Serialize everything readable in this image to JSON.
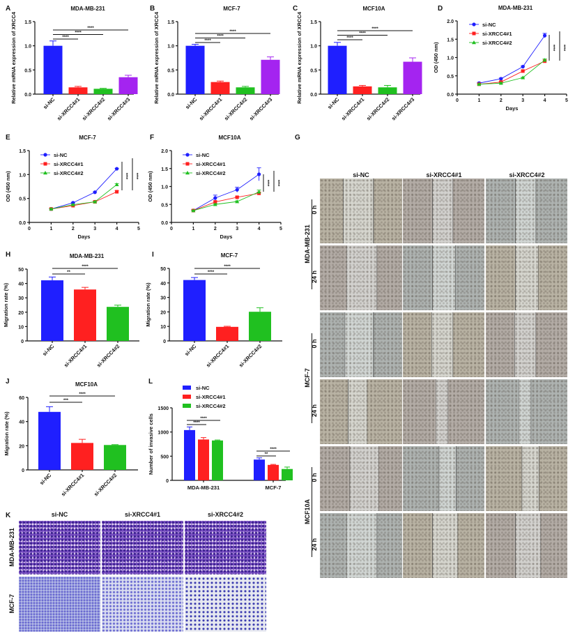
{
  "panel_letters": {
    "A": "A",
    "B": "B",
    "C": "C",
    "D": "D",
    "E": "E",
    "F": "F",
    "G": "G",
    "H": "H",
    "I": "I",
    "J": "J",
    "K": "K",
    "L": "L"
  },
  "colors": {
    "si-NC": "#1f1fff",
    "si-XRCC4#1": "#ff2020",
    "si-XRCC4#2": "#20c020",
    "si-XRCC4#3": "#a424f0"
  },
  "chart_data": [
    {
      "panel": "A",
      "type": "bar",
      "title": "MDA-MB-231",
      "ylabel": "Relative mRNA expression of XRCC4",
      "ylim": [
        0,
        1.5
      ],
      "yticks": [
        "0.0",
        "0.5",
        "1.0",
        "1.5"
      ],
      "categories": [
        "si-NC",
        "si-XRCC4#1",
        "si-XRCC4#2",
        "si-XRCC4#3"
      ],
      "values": [
        1.0,
        0.14,
        0.11,
        0.35
      ],
      "errors": [
        0.1,
        0.02,
        0.01,
        0.04
      ],
      "significance": [
        {
          "from": 0,
          "to": 1,
          "label": "****"
        },
        {
          "from": 0,
          "to": 2,
          "label": "****"
        },
        {
          "from": 0,
          "to": 3,
          "label": "****"
        }
      ]
    },
    {
      "panel": "B",
      "type": "bar",
      "title": "MCF-7",
      "ylabel": "Relative mRNA expression of XRCC4",
      "ylim": [
        0,
        1.5
      ],
      "yticks": [
        "0.0",
        "0.5",
        "1.0",
        "1.5"
      ],
      "categories": [
        "si-NC",
        "si-XRCC4#1",
        "si-XRCC4#2",
        "si-XRCC4#3"
      ],
      "values": [
        1.0,
        0.25,
        0.14,
        0.71
      ],
      "errors": [
        0.03,
        0.02,
        0.02,
        0.06
      ],
      "significance": [
        {
          "from": 0,
          "to": 1,
          "label": "****"
        },
        {
          "from": 0,
          "to": 2,
          "label": "****"
        },
        {
          "from": 0,
          "to": 3,
          "label": "****"
        }
      ]
    },
    {
      "panel": "C",
      "type": "bar",
      "title": "MCF10A",
      "ylabel": "Relative mRNA expression of XRCC4",
      "ylim": [
        0,
        1.5
      ],
      "yticks": [
        "0.0",
        "0.5",
        "1.0",
        "1.5"
      ],
      "categories": [
        "si-NC",
        "si-XRCC4#1",
        "si-XRCC4#2",
        "si-XRCC4#3"
      ],
      "values": [
        1.0,
        0.16,
        0.14,
        0.67
      ],
      "errors": [
        0.07,
        0.02,
        0.04,
        0.08
      ],
      "significance": [
        {
          "from": 0,
          "to": 1,
          "label": "****"
        },
        {
          "from": 0,
          "to": 2,
          "label": "****"
        },
        {
          "from": 0,
          "to": 3,
          "label": "****"
        }
      ]
    },
    {
      "panel": "D",
      "type": "line",
      "title": "MDA-MB-231",
      "xlabel": "Days",
      "ylabel": "OD (450 nm)",
      "xlim": [
        0,
        5
      ],
      "ylim": [
        0,
        2
      ],
      "xticks": [
        "0",
        "1",
        "2",
        "3",
        "4",
        "5"
      ],
      "yticks": [
        "0.0",
        "0.5",
        "1.0",
        "1.5",
        "2.0"
      ],
      "legend": "top-left",
      "x": [
        1,
        2,
        3,
        4
      ],
      "series": [
        {
          "name": "si-NC",
          "values": [
            0.3,
            0.42,
            0.75,
            1.6
          ],
          "errors": [
            0.02,
            0.02,
            0.02,
            0.06
          ]
        },
        {
          "name": "si-XRCC4#1",
          "values": [
            0.27,
            0.33,
            0.63,
            0.9
          ],
          "errors": [
            0.01,
            0.02,
            0.02,
            0.03
          ]
        },
        {
          "name": "si-XRCC4#2",
          "values": [
            0.27,
            0.3,
            0.45,
            0.93
          ],
          "errors": [
            0.01,
            0.01,
            0.01,
            0.03
          ]
        }
      ],
      "significance": [
        "****",
        "****"
      ]
    },
    {
      "panel": "E",
      "type": "line",
      "title": "MCF-7",
      "xlabel": "Days",
      "ylabel": "OD (450 nm)",
      "xlim": [
        0,
        5
      ],
      "ylim": [
        0,
        1.5
      ],
      "xticks": [
        "0",
        "1",
        "2",
        "3",
        "4",
        "5"
      ],
      "yticks": [
        "0.0",
        "0.5",
        "1.0",
        "1.5"
      ],
      "legend": "top-left",
      "x": [
        1,
        2,
        3,
        4
      ],
      "series": [
        {
          "name": "si-NC",
          "values": [
            0.28,
            0.41,
            0.63,
            1.12
          ],
          "errors": [
            0.01,
            0.01,
            0.01,
            0.01
          ]
        },
        {
          "name": "si-XRCC4#1",
          "values": [
            0.28,
            0.35,
            0.43,
            0.64
          ],
          "errors": [
            0.01,
            0.01,
            0.01,
            0.02
          ]
        },
        {
          "name": "si-XRCC4#2",
          "values": [
            0.28,
            0.37,
            0.43,
            0.79
          ],
          "errors": [
            0.01,
            0.01,
            0.01,
            0.02
          ]
        }
      ],
      "significance": [
        "****",
        "****"
      ]
    },
    {
      "panel": "F",
      "type": "line",
      "title": "MCF10A",
      "xlabel": "Days",
      "ylabel": "OD (450 nm)",
      "xlim": [
        0,
        5
      ],
      "ylim": [
        0,
        2
      ],
      "xticks": [
        "0",
        "1",
        "2",
        "3",
        "4",
        "5"
      ],
      "yticks": [
        "0.0",
        "0.5",
        "1.0",
        "1.5",
        "2.0"
      ],
      "legend": "top-left",
      "x": [
        1,
        2,
        3,
        4
      ],
      "series": [
        {
          "name": "si-NC",
          "values": [
            0.33,
            0.68,
            0.91,
            1.34
          ],
          "errors": [
            0.02,
            0.08,
            0.07,
            0.18
          ]
        },
        {
          "name": "si-XRCC4#1",
          "values": [
            0.33,
            0.57,
            0.7,
            0.81
          ],
          "errors": [
            0.01,
            0.03,
            0.02,
            0.03
          ]
        },
        {
          "name": "si-XRCC4#2",
          "values": [
            0.33,
            0.5,
            0.58,
            0.85
          ],
          "errors": [
            0.01,
            0.02,
            0.02,
            0.05
          ]
        }
      ],
      "significance": [
        "****",
        "****"
      ]
    },
    {
      "panel": "H",
      "type": "bar",
      "title": "MDA-MB-231",
      "ylabel": "Migration rate (%)",
      "ylim": [
        0,
        50
      ],
      "yticks": [
        "0",
        "10",
        "20",
        "30",
        "40",
        "50"
      ],
      "categories": [
        "si-NC",
        "si-XRCC4#1",
        "si-XRCC4#2"
      ],
      "values": [
        42.2,
        35.8,
        23.7
      ],
      "errors": [
        2.3,
        1.5,
        1.2
      ],
      "significance": [
        {
          "from": 0,
          "to": 1,
          "label": "**"
        },
        {
          "from": 0,
          "to": 2,
          "label": "****"
        }
      ]
    },
    {
      "panel": "I",
      "type": "bar",
      "title": "MCF-7",
      "ylabel": "Migration rate (%)",
      "ylim": [
        0,
        50
      ],
      "yticks": [
        "0",
        "10",
        "20",
        "30",
        "40",
        "50"
      ],
      "categories": [
        "si-NC",
        "si-XRCC4#1",
        "si-XRCC4#2"
      ],
      "values": [
        42.0,
        9.7,
        20.1
      ],
      "errors": [
        1.7,
        0.4,
        2.8
      ],
      "significance": [
        {
          "from": 0,
          "to": 1,
          "label": "****"
        },
        {
          "from": 0,
          "to": 2,
          "label": "****"
        }
      ]
    },
    {
      "panel": "J",
      "type": "bar",
      "title": "MCF10A",
      "ylabel": "Migration rate (%)",
      "ylim": [
        0,
        60
      ],
      "yticks": [
        "0",
        "20",
        "40",
        "60"
      ],
      "categories": [
        "si-NC",
        "si-XRCC4#1",
        "si-XRCC4#2"
      ],
      "values": [
        48.0,
        22.3,
        20.6
      ],
      "errors": [
        4.3,
        3.0,
        0.3
      ],
      "significance": [
        {
          "from": 0,
          "to": 1,
          "label": "***"
        },
        {
          "from": 0,
          "to": 2,
          "label": "****"
        }
      ]
    },
    {
      "panel": "L",
      "type": "bar",
      "ylabel": "Number of invasive cells",
      "ylim": [
        0,
        1500
      ],
      "yticks": [
        "0",
        "500",
        "1000",
        "1500"
      ],
      "legend": "top",
      "categories": [
        "MDA-MB-231",
        "MCF-7"
      ],
      "series": [
        {
          "name": "si-NC",
          "values": [
            1040,
            430
          ],
          "errors": [
            65,
            35
          ]
        },
        {
          "name": "si-XRCC4#1",
          "values": [
            845,
            320
          ],
          "errors": [
            40,
            10
          ]
        },
        {
          "name": "si-XRCC4#2",
          "values": [
            825,
            235
          ],
          "errors": [
            10,
            40
          ]
        }
      ],
      "significance": [
        [
          {
            "from": 0,
            "to": 1,
            "label": "****"
          },
          {
            "from": 0,
            "to": 2,
            "label": "****"
          }
        ],
        [
          {
            "from": 0,
            "to": 1,
            "label": "**"
          },
          {
            "from": 0,
            "to": 2,
            "label": "****"
          }
        ]
      ]
    }
  ],
  "panel_G": {
    "columns": [
      "si-NC",
      "si-XRCC4#1",
      "si-XRCC4#2"
    ],
    "cell_lines": [
      "MDA-MB-231",
      "MCF-7",
      "MCF10A"
    ],
    "timepoints": [
      "0 h",
      "24 h"
    ]
  },
  "panel_K": {
    "columns": [
      "si-NC",
      "si-XRCC4#1",
      "si-XRCC4#2"
    ],
    "rows": [
      "MDA-MB-231",
      "MCF-7"
    ]
  }
}
